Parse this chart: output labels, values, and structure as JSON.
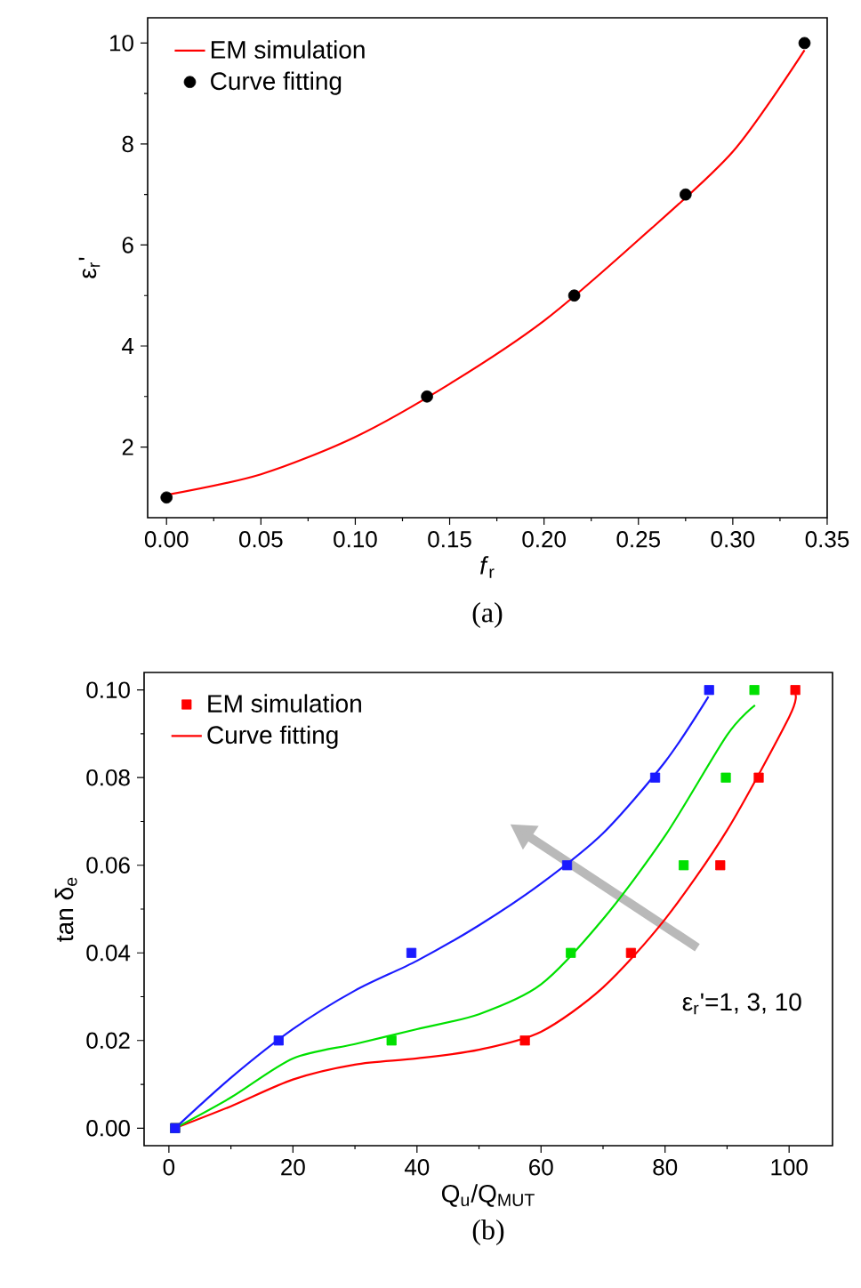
{
  "chart_data": [
    {
      "type": "line",
      "title": "(a)",
      "xlabel": "*f*$_{r}$",
      "ylabel": "ε$_{r}$'",
      "xlim": [
        -0.01,
        0.35
      ],
      "ylim": [
        0.6,
        10.5
      ],
      "xticks": [
        {
          "value": 0,
          "label": "0.00"
        },
        {
          "value": 0.05,
          "label": "0.05"
        },
        {
          "value": 0.1,
          "label": "0.10"
        },
        {
          "value": 0.15,
          "label": "0.15"
        },
        {
          "value": 0.2,
          "label": "0.20"
        },
        {
          "value": 0.25,
          "label": "0.25"
        },
        {
          "value": 0.3,
          "label": "0.30"
        },
        {
          "value": 0.35,
          "label": "0.35"
        }
      ],
      "yticks": [
        2,
        4,
        6,
        8,
        10
      ],
      "legend": "top left",
      "series": [
        {
          "name": "EM simulation",
          "color": "#ff0000",
          "marker": "none",
          "x": [
            0,
            0.05,
            0.1,
            0.15,
            0.2,
            0.25,
            0.3,
            0.338
          ],
          "values": [
            1.05,
            1.46,
            2.2,
            3.25,
            4.5,
            6.1,
            7.85,
            9.86
          ]
        },
        {
          "name": "Curve fitting",
          "type": "scatter",
          "color": "#000000",
          "marker": "circle",
          "x": [
            0,
            0.138,
            0.216,
            0.275,
            0.338
          ],
          "values": [
            1,
            3,
            5,
            7,
            10
          ]
        }
      ]
    },
    {
      "type": "line",
      "title": "(b)",
      "xlabel": "Q$_{u}$/Q$_{MUT}$",
      "ylabel": "tan δ$_{e}$",
      "xlim": [
        -4,
        107
      ],
      "ylim": [
        -0.004,
        0.104
      ],
      "xticks": [
        0,
        20,
        40,
        60,
        80,
        100
      ],
      "yticks": [
        {
          "value": 0,
          "label": "0.00"
        },
        {
          "value": 0.02,
          "label": "0.02"
        },
        {
          "value": 0.04,
          "label": "0.04"
        },
        {
          "value": 0.06,
          "label": "0.06"
        },
        {
          "value": 0.08,
          "label": "0.08"
        },
        {
          "value": 0.1,
          "label": "0.10"
        }
      ],
      "legend": "top left",
      "annotations": [
        "ε$_{r}$'=1, 3, 10"
      ],
      "series": [
        {
          "name": "EM simulation",
          "type": "scatter",
          "color": "#ff0000",
          "marker": "square",
          "x": [
            1,
            57.4,
            74.5,
            88.9,
            95.1,
            101
          ],
          "values": [
            0,
            0.02,
            0.04,
            0.06,
            0.08,
            0.1
          ]
        },
        {
          "type": "scatter",
          "color": "#00e000",
          "marker": "square",
          "x": [
            1,
            35.9,
            64.8,
            83,
            89.8,
            94.4
          ],
          "values": [
            0,
            0.02,
            0.04,
            0.06,
            0.08,
            0.1
          ]
        },
        {
          "type": "scatter",
          "color": "#1a1aff",
          "marker": "square",
          "x": [
            1,
            17.7,
            39.1,
            64.2,
            78.4,
            87.1
          ],
          "values": [
            0,
            0.02,
            0.04,
            0.06,
            0.08,
            0.1
          ]
        },
        {
          "name": "Curve fitting",
          "color": "#ff0000",
          "marker": "none",
          "x": [
            1,
            10,
            20,
            30,
            40,
            50,
            60,
            70,
            80,
            90,
            100,
            101
          ],
          "values": [
            0,
            0.005,
            0.0111,
            0.0145,
            0.0159,
            0.0179,
            0.022,
            0.0321,
            0.0477,
            0.068,
            0.0938,
            0.099
          ]
        },
        {
          "color": "#00e000",
          "marker": "none",
          "x": [
            1,
            10,
            20,
            30,
            40,
            50,
            60,
            70,
            80,
            90,
            94.5
          ],
          "values": [
            0,
            0.007,
            0.0159,
            0.0192,
            0.0226,
            0.026,
            0.0328,
            0.0477,
            0.0667,
            0.0897,
            0.0965
          ]
        },
        {
          "color": "#1a1aff",
          "marker": "none",
          "x": [
            1,
            10,
            20,
            30,
            40,
            50,
            60,
            70,
            80,
            87
          ],
          "values": [
            0,
            0.0115,
            0.0226,
            0.0314,
            0.0382,
            0.0463,
            0.0558,
            0.0673,
            0.0836,
            0.0985
          ]
        }
      ]
    }
  ]
}
